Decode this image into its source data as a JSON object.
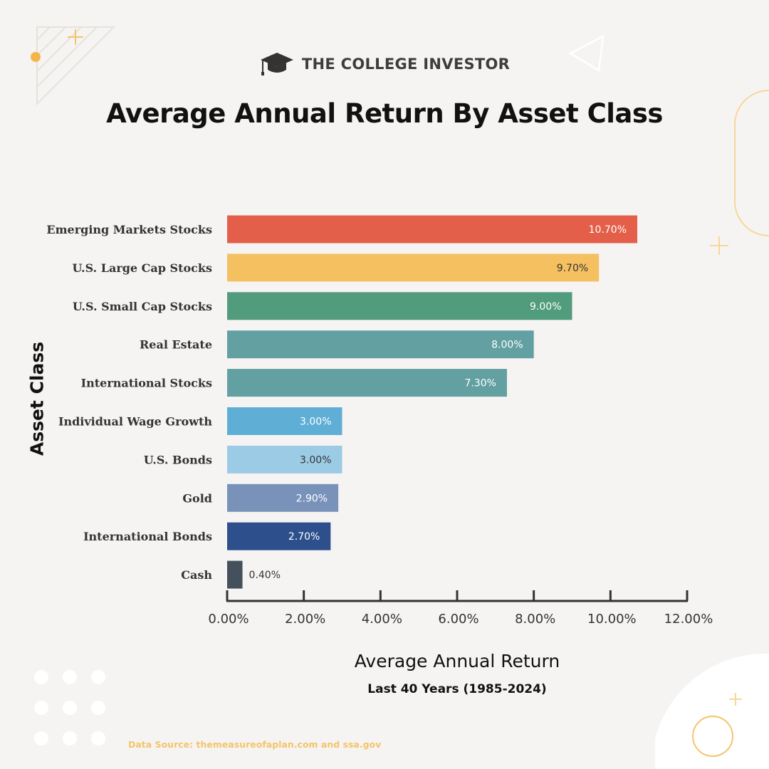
{
  "brand": {
    "name": "THE COLLEGE INVESTOR"
  },
  "chart_data": {
    "type": "bar",
    "orientation": "horizontal",
    "title": "Average Annual Return By Asset Class",
    "xlabel": "Average Annual Return",
    "xlabel_sub": "Last 40 Years (1985-2024)",
    "ylabel": "Asset Class",
    "xlim": [
      0,
      12
    ],
    "ticks": [
      0,
      2,
      4,
      6,
      8,
      10,
      12
    ],
    "tick_labels": [
      "0.00%",
      "2.00%",
      "4.00%",
      "6.00%",
      "8.00%",
      "10.00%",
      "12.00%"
    ],
    "categories": [
      "Emerging Markets Stocks",
      "U.S. Large Cap Stocks",
      "U.S. Small Cap Stocks",
      "Real Estate",
      "International Stocks",
      "Individual Wage Growth",
      "U.S. Bonds",
      "Gold",
      "International Bonds",
      "Cash"
    ],
    "values": [
      10.7,
      9.7,
      9.0,
      8.0,
      7.3,
      3.0,
      3.0,
      2.9,
      2.7,
      0.4
    ],
    "value_labels": [
      "10.70%",
      "9.70%",
      "9.00%",
      "8.00%",
      "7.30%",
      "3.00%",
      "3.00%",
      "2.90%",
      "2.70%",
      "0.40%"
    ],
    "colors": [
      "#e45f49",
      "#f5c060",
      "#529c7e",
      "#62a0a2",
      "#62a0a2",
      "#5eaed6",
      "#9ccbe5",
      "#7892b9",
      "#2d4f8c",
      "#44505c"
    ],
    "label_colors": [
      "#ffffff",
      "#333333",
      "#ffffff",
      "#ffffff",
      "#ffffff",
      "#ffffff",
      "#333333",
      "#ffffff",
      "#ffffff",
      "#333333"
    ]
  },
  "footer": {
    "source": "Data Source: themeasureofaplan.com and ssa.gov"
  },
  "colors": {
    "accent": "#f3c46a",
    "background": "#f6f4f2"
  }
}
